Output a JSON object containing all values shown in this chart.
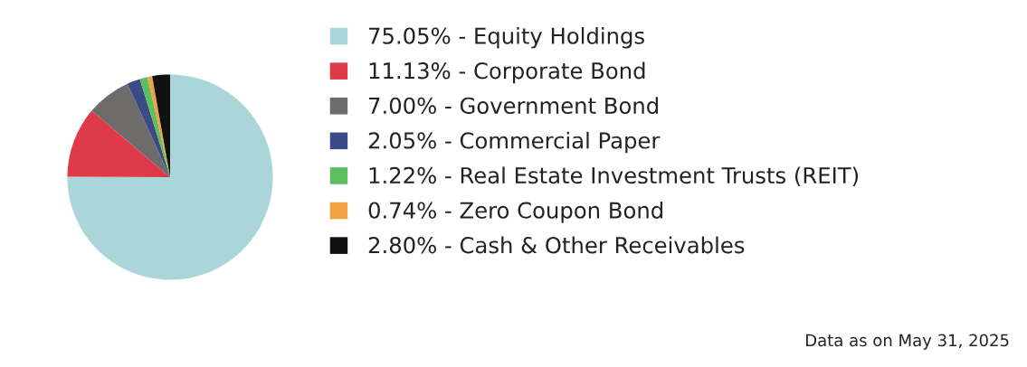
{
  "chart_data": {
    "type": "pie",
    "categories": [
      "Equity Holdings",
      "Corporate Bond",
      "Government Bond",
      "Commercial Paper",
      "Real Estate Investment Trusts (REIT)",
      "Zero Coupon Bond",
      "Cash & Other Receivables"
    ],
    "values": [
      75.05,
      11.13,
      7.0,
      2.05,
      1.22,
      0.74,
      2.8
    ],
    "value_labels": [
      "75.05%",
      "11.13%",
      "7.00%",
      "2.05%",
      "1.22%",
      "0.74%",
      "2.80%"
    ],
    "colors": [
      "#aad6d9",
      "#e03a48",
      "#6d6c6b",
      "#3c4a86",
      "#5dbe5d",
      "#f0a142",
      "#111111"
    ],
    "legend": "right",
    "annotations": [
      "Data as on May 31, 2025"
    ]
  }
}
